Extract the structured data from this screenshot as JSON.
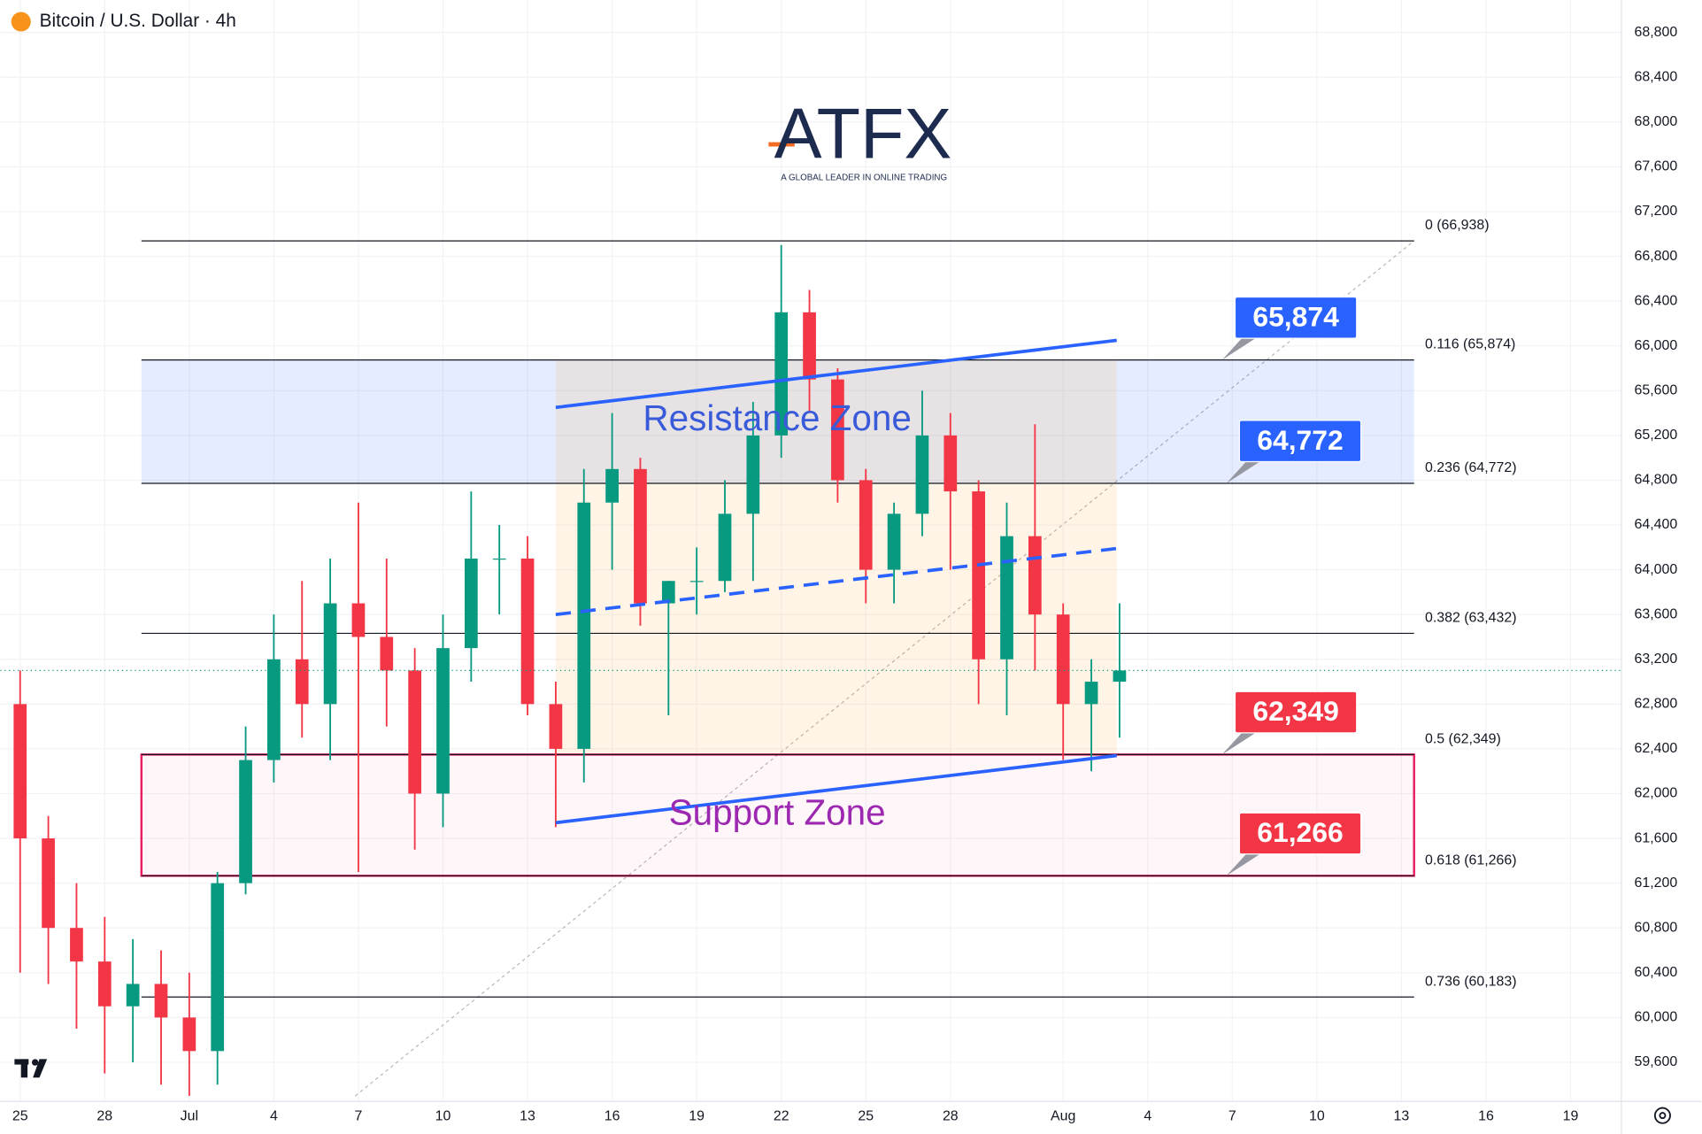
{
  "header": {
    "title": "Bitcoin / U.S. Dollar · 4h"
  },
  "logo": {
    "name": "ATFX",
    "tagline": "A GLOBAL LEADER IN ONLINE TRADING"
  },
  "chart_data": {
    "type": "candlestick",
    "x": [
      0,
      1,
      2,
      3,
      4,
      5,
      6,
      7,
      8,
      9,
      10,
      11,
      12,
      13,
      14,
      15,
      16,
      17,
      18,
      19,
      20,
      21,
      22,
      23,
      24,
      25,
      26,
      27,
      28,
      29,
      30,
      31,
      32,
      33,
      34,
      35,
      36,
      37,
      38,
      39
    ],
    "open": [
      62800,
      61600,
      60800,
      60500,
      60100,
      60300,
      60000,
      59700,
      61200,
      62300,
      63200,
      62800,
      63700,
      63400,
      63100,
      62000,
      63300,
      64100,
      64100,
      62800,
      62400,
      64600,
      64900,
      63700,
      63900,
      63900,
      64500,
      65200,
      66300,
      65700,
      64800,
      64000,
      64500,
      65200,
      64700,
      63200,
      64300,
      63600,
      62800,
      63000
    ],
    "high": [
      63100,
      61800,
      61200,
      60900,
      60700,
      60600,
      60400,
      61300,
      62600,
      63600,
      63900,
      64100,
      64600,
      64100,
      63300,
      63600,
      64700,
      64400,
      64300,
      63000,
      64900,
      65400,
      65000,
      63900,
      64200,
      64800,
      65500,
      66900,
      66500,
      65800,
      64900,
      64600,
      65600,
      65400,
      64800,
      64600,
      65300,
      63700,
      63200,
      63700
    ],
    "low": [
      60400,
      60300,
      59900,
      59500,
      59600,
      59400,
      59300,
      59400,
      61100,
      62100,
      62500,
      62300,
      61300,
      62600,
      61500,
      61700,
      63000,
      63600,
      62700,
      61700,
      62100,
      64000,
      63500,
      62700,
      63600,
      63800,
      63900,
      65000,
      65400,
      64600,
      63700,
      63700,
      64300,
      64000,
      62800,
      62700,
      63100,
      62300,
      62200,
      62500
    ],
    "close": [
      61600,
      60800,
      60500,
      60100,
      60300,
      60000,
      59700,
      61200,
      62300,
      63200,
      62800,
      63700,
      63400,
      63100,
      62000,
      63300,
      64100,
      64100,
      62800,
      62400,
      64600,
      64900,
      63700,
      63900,
      63900,
      64500,
      65200,
      66300,
      65700,
      64800,
      64000,
      64500,
      65200,
      64700,
      63200,
      64300,
      63600,
      62800,
      63000,
      63100
    ],
    "up_color": "#089981",
    "down_color": "#f23645",
    "xlim": [
      -0.7,
      56.8
    ],
    "xticks": [
      {
        "value": 0,
        "label": "25"
      },
      {
        "value": 3,
        "label": "28"
      },
      {
        "value": 6,
        "label": "Jul"
      },
      {
        "value": 9,
        "label": "4"
      },
      {
        "value": 12,
        "label": "7"
      },
      {
        "value": 15,
        "label": "10"
      },
      {
        "value": 18,
        "label": "13"
      },
      {
        "value": 21,
        "label": "16"
      },
      {
        "value": 24,
        "label": "19"
      },
      {
        "value": 27,
        "label": "22"
      },
      {
        "value": 30,
        "label": "25"
      },
      {
        "value": 33,
        "label": "28"
      },
      {
        "value": 37,
        "label": "Aug"
      },
      {
        "value": 40,
        "label": "4"
      },
      {
        "value": 43,
        "label": "7"
      },
      {
        "value": 46,
        "label": "10"
      },
      {
        "value": 49,
        "label": "13"
      },
      {
        "value": 52,
        "label": "16"
      },
      {
        "value": 55,
        "label": "19"
      }
    ],
    "ylim": [
      59250,
      69090
    ],
    "yticks": [
      {
        "value": 59600,
        "label": "59,600"
      },
      {
        "value": 60000,
        "label": "60,000"
      },
      {
        "value": 60400,
        "label": "60,400"
      },
      {
        "value": 60800,
        "label": "60,800"
      },
      {
        "value": 61200,
        "label": "61,200"
      },
      {
        "value": 61600,
        "label": "61,600"
      },
      {
        "value": 62000,
        "label": "62,000"
      },
      {
        "value": 62400,
        "label": "62,400"
      },
      {
        "value": 62800,
        "label": "62,800"
      },
      {
        "value": 63200,
        "label": "63,200"
      },
      {
        "value": 63600,
        "label": "63,600"
      },
      {
        "value": 64000,
        "label": "64,000"
      },
      {
        "value": 64400,
        "label": "64,400"
      },
      {
        "value": 64800,
        "label": "64,800"
      },
      {
        "value": 65200,
        "label": "65,200"
      },
      {
        "value": 65600,
        "label": "65,600"
      },
      {
        "value": 66000,
        "label": "66,000"
      },
      {
        "value": 66400,
        "label": "66,400"
      },
      {
        "value": 66800,
        "label": "66,800"
      },
      {
        "value": 67200,
        "label": "67,200"
      },
      {
        "value": 67600,
        "label": "67,600"
      },
      {
        "value": 68000,
        "label": "68,000"
      },
      {
        "value": 68400,
        "label": "68,400"
      },
      {
        "value": 68800,
        "label": "68,800"
      }
    ],
    "grid": true,
    "fib_levels": [
      {
        "value": 66938,
        "label": "0 (66,938)"
      },
      {
        "value": 65874,
        "label": "0.116 (65,874)"
      },
      {
        "value": 64772,
        "label": "0.236 (64,772)"
      },
      {
        "value": 63432,
        "label": "0.382 (63,432)"
      },
      {
        "value": 62349,
        "label": "0.5 (62,349)"
      },
      {
        "value": 61266,
        "label": "0.618 (61,266)"
      },
      {
        "value": 60183,
        "label": "0.736 (60,183)"
      }
    ],
    "zones": [
      {
        "name": "Resistance Zone",
        "from": 64772,
        "to": 65874,
        "color": "#2962ff",
        "text_color": "#3a5bd9"
      },
      {
        "name": "Support Zone",
        "from": 61266,
        "to": 62349,
        "color": "#e91e63",
        "text_color": "#9c27b0"
      }
    ],
    "callouts": [
      {
        "value": 65874,
        "label": "65,874",
        "color": "#2962ff"
      },
      {
        "value": 64772,
        "label": "64,772",
        "color": "#2962ff"
      },
      {
        "value": 62349,
        "label": "62,349",
        "color": "#f23645"
      },
      {
        "value": 61266,
        "label": "61,266",
        "color": "#f23645"
      }
    ],
    "channel": {
      "x": [
        19,
        38.9
      ],
      "upper": [
        65450,
        66050
      ],
      "middle": [
        63600,
        64190
      ],
      "lower": [
        61740,
        62340
      ],
      "color": "#2962ff"
    }
  }
}
